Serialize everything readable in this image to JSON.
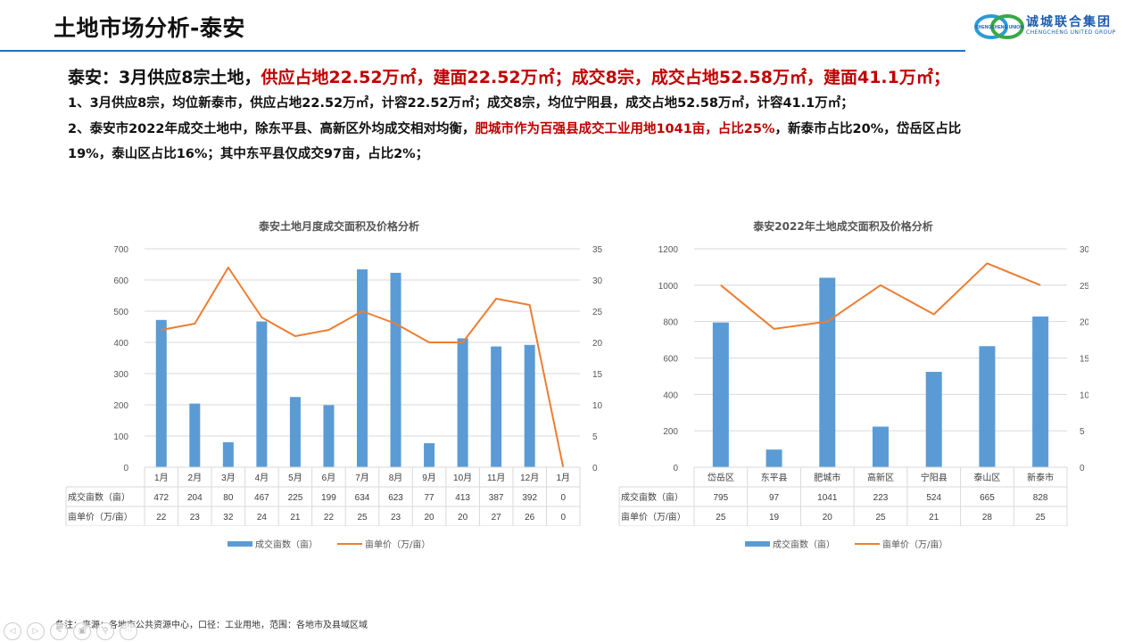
{
  "header": {
    "title": "土地市场分析-泰安",
    "logo": {
      "cn": "诚城联合集团",
      "en": "CHENGCHENG UNITED GROUP",
      "emblem_text": "CHENGCHENG UNION"
    },
    "accent_color": "#1f6fc3"
  },
  "summary": {
    "prefix": "泰安：3月供应8宗土地，",
    "highlight": "供应占地22.52万㎡，建面22.52万㎡；成交8宗，成交占地52.58万㎡，建面41.1万㎡；",
    "highlight_color": "#c00000"
  },
  "points": {
    "p1": "1、3月供应8宗，均位新泰市，供应占地22.52万㎡，计容22.52万㎡；成交8宗，均位宁阳县，成交占地52.58万㎡，计容41.1万㎡；",
    "p2_prefix": "2、泰安市2022年成交土地中，除东平县、高新区外均成交相对均衡，",
    "p2_highlight": "肥城市作为百强县成交工业用地1041亩，占比25%",
    "p2_suffix": "，新泰市占比20%，岱岳区占比",
    "p2_line2": "19%，泰山区占比16%；其中东平县仅成交97亩，占比2%；"
  },
  "chart_data": [
    {
      "type": "bar+line",
      "title": "泰安土地月度成交面积及价格分析",
      "categories": [
        "1月",
        "2月",
        "3月",
        "4月",
        "5月",
        "6月",
        "7月",
        "8月",
        "9月",
        "10月",
        "11月",
        "12月",
        "1月"
      ],
      "series": [
        {
          "name": "成交亩数（亩）",
          "type": "bar",
          "axis": "left",
          "color": "#5b9bd5",
          "values": [
            472,
            204,
            80,
            467,
            225,
            199,
            634,
            623,
            77,
            413,
            387,
            392,
            0
          ]
        },
        {
          "name": "亩单价（万/亩）",
          "type": "line",
          "axis": "right",
          "color": "#ed7d31",
          "values": [
            22,
            23,
            32,
            24,
            21,
            22,
            25,
            23,
            20,
            20,
            27,
            26,
            0
          ]
        }
      ],
      "y_left": {
        "min": 0,
        "max": 700,
        "step": 100,
        "ticks": [
          0,
          100,
          200,
          300,
          400,
          500,
          600,
          700
        ]
      },
      "y_right": {
        "min": 0,
        "max": 35,
        "step": 5,
        "ticks": [
          0,
          5,
          10,
          15,
          20,
          25,
          30,
          35
        ]
      },
      "grid": true,
      "data_table": true,
      "legend_position": "bottom"
    },
    {
      "type": "bar+line",
      "title": "泰安2022年土地成交面积及价格分析",
      "categories": [
        "岱岳区",
        "东平县",
        "肥城市",
        "高新区",
        "宁阳县",
        "泰山区",
        "新泰市"
      ],
      "series": [
        {
          "name": "成交亩数（亩）",
          "type": "bar",
          "axis": "left",
          "color": "#5b9bd5",
          "values": [
            795,
            97,
            1041,
            223,
            524,
            665,
            828
          ]
        },
        {
          "name": "亩单价（万/亩）",
          "type": "line",
          "axis": "right",
          "color": "#ed7d31",
          "values": [
            25,
            19,
            20,
            25,
            21,
            28,
            25
          ]
        }
      ],
      "y_left": {
        "min": 0,
        "max": 1200,
        "step": 200,
        "ticks": [
          0,
          200,
          400,
          600,
          800,
          1000,
          1200
        ]
      },
      "y_right": {
        "min": 0,
        "max": 30,
        "step": 5,
        "ticks": [
          0,
          5,
          10,
          15,
          20,
          25,
          30
        ]
      },
      "grid": true,
      "data_table": true,
      "legend_position": "bottom"
    }
  ],
  "legend": {
    "bar": "成交亩数（亩）",
    "line": "亩单价（万/亩）"
  },
  "footnote": "备注：来源：各地市公共资源中心，口径：工业用地，范围：各地市及县域区域",
  "nav": {
    "icons": [
      "prev-icon",
      "next-icon",
      "pen-icon",
      "slides-icon",
      "zoom-icon",
      "more-icon"
    ]
  }
}
